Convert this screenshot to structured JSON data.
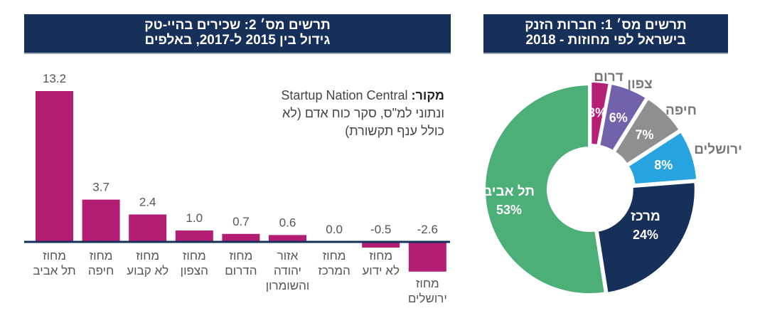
{
  "chart_data": [
    {
      "type": "bar",
      "title_lines": [
        "תרשים מס׳ 2: שכירים בהיי-טק",
        "גידול בין 2015 ל-2017, באלפים"
      ],
      "categories": [
        [
          "מחוז",
          "תל אביב"
        ],
        [
          "מחוז",
          "חיפה"
        ],
        [
          "מחוז",
          "לא קבוע"
        ],
        [
          "מחוז",
          "הצפון"
        ],
        [
          "מחוז",
          "הדרום"
        ],
        [
          "אזור",
          "יהודה",
          "והשומרון"
        ],
        [
          "מחוז",
          "המרכז"
        ],
        [
          "מחוז",
          "לא ידוע"
        ],
        [
          "מחוז",
          "ירושלים"
        ]
      ],
      "values": [
        13.2,
        3.7,
        2.4,
        1.0,
        0.7,
        0.6,
        0.0,
        -0.5,
        -2.6
      ],
      "value_labels": [
        "13.2",
        "3.7",
        "2.4",
        "1.0",
        "0.7",
        "0.6",
        "0.0",
        "-0.5",
        "-2.6"
      ],
      "bar_color": "#b31e74",
      "source_label": "מקור:",
      "source_text": "Startup Nation Central ונתוני למ\"ס, סקר כוח אדם (לא כולל ענף תקשורת)"
    },
    {
      "type": "pie",
      "donut": true,
      "title_lines": [
        "תרשים מס׳ 1: חברות הזנק",
        "בישראל לפי מחוזות - 2018"
      ],
      "slices": [
        {
          "label": "דרום",
          "value": 3,
          "text": "3%",
          "color": "#b51f74",
          "label_outside": true
        },
        {
          "label": "צפון",
          "value": 6,
          "text": "6%",
          "color": "#7461ab",
          "label_outside": true
        },
        {
          "label": "חיפה",
          "value": 7,
          "text": "7%",
          "color": "#8f8e90",
          "label_outside": true
        },
        {
          "label": "ירושלים",
          "value": 8,
          "text": "8%",
          "color": "#27a4e0",
          "label_outside": true
        },
        {
          "label": "מרכז",
          "value": 24,
          "text": "24%",
          "color": "#16305a",
          "label_outside": false
        },
        {
          "label": "תל אביב",
          "value": 53,
          "text": "53%",
          "color": "#4caf78",
          "label_outside": false
        }
      ]
    }
  ]
}
